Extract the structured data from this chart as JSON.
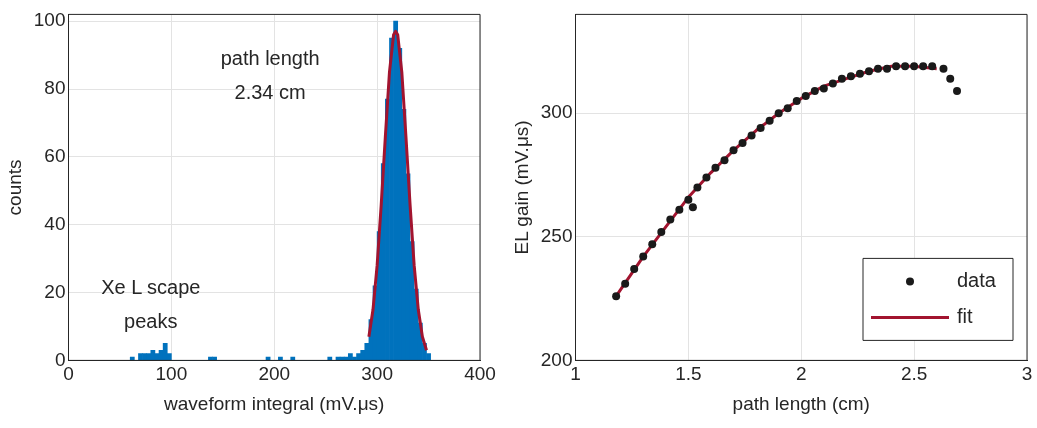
{
  "chart_data": [
    {
      "type": "histogram",
      "xlabel": "waveform integral (mV.μs)",
      "ylabel": "counts",
      "annotations": [
        "path length\n2.34 cm",
        "Xe L scape\npeaks"
      ],
      "bins": [
        60,
        64,
        68,
        72,
        76,
        80,
        84,
        88,
        92,
        96,
        100,
        104,
        108,
        112,
        116,
        120,
        124,
        128,
        132,
        136,
        140,
        144,
        148,
        152,
        156,
        160,
        164,
        168,
        172,
        176,
        180,
        184,
        188,
        192,
        196,
        200,
        204,
        208,
        212,
        216,
        220,
        224,
        228,
        232,
        236,
        240,
        244,
        248,
        252,
        256,
        260,
        264,
        268,
        272,
        276,
        280,
        284,
        288,
        292,
        296,
        300,
        304,
        308,
        312,
        316,
        320,
        324,
        328,
        332,
        336,
        340,
        344,
        348,
        352
      ],
      "values": [
        1,
        0,
        2,
        2,
        2,
        3,
        2,
        3,
        5,
        2,
        0,
        0,
        0,
        0,
        0,
        0,
        0,
        0,
        0,
        1,
        1,
        0,
        0,
        0,
        0,
        0,
        0,
        0,
        0,
        0,
        0,
        0,
        0,
        1,
        0,
        0,
        1,
        0,
        0,
        1,
        0,
        0,
        0,
        0,
        0,
        0,
        0,
        0,
        1,
        0,
        1,
        1,
        1,
        2,
        1,
        2,
        3,
        5,
        12,
        22,
        38,
        58,
        77,
        95,
        100,
        92,
        74,
        55,
        35,
        21,
        11,
        5,
        2
      ],
      "color": "#0072bd",
      "series": [
        {
          "type": "line",
          "color": "#a2142f",
          "x": [
            292,
            296,
            300,
            304,
            308,
            312,
            316,
            318,
            320,
            324,
            328,
            332,
            336,
            340,
            344,
            348
          ],
          "values": [
            7,
            15,
            28,
            46,
            66,
            85,
            96,
            97,
            96,
            85,
            66,
            46,
            28,
            15,
            7,
            3
          ]
        }
      ],
      "xlim": [
        0,
        400
      ],
      "xticks": [
        0,
        100,
        200,
        300,
        400
      ],
      "ylim": [
        0,
        102
      ],
      "yticks": [
        0,
        20,
        40,
        60,
        80,
        100
      ],
      "grid": true
    },
    {
      "type": "scatter",
      "xlabel": "path length (cm)",
      "ylabel": "EL gain (mV.μs)",
      "legend": "bottom right",
      "series": [
        {
          "name": "data",
          "type": "scatter",
          "color": "#1a1a1a",
          "marker": "circle",
          "x": [
            1.18,
            1.22,
            1.26,
            1.3,
            1.34,
            1.38,
            1.42,
            1.46,
            1.5,
            1.52,
            1.54,
            1.58,
            1.62,
            1.66,
            1.7,
            1.74,
            1.78,
            1.82,
            1.86,
            1.9,
            1.94,
            1.98,
            2.02,
            2.06,
            2.1,
            2.14,
            2.18,
            2.22,
            2.26,
            2.3,
            2.34,
            2.38,
            2.42,
            2.46,
            2.5,
            2.54,
            2.58,
            2.63,
            2.66,
            2.69
          ],
          "values": [
            226,
            231,
            237,
            242,
            247,
            252,
            257,
            261,
            265,
            262,
            270,
            274,
            278,
            281,
            285,
            288,
            291,
            294,
            297,
            300,
            302,
            305,
            307,
            309,
            310,
            312,
            314,
            315,
            316,
            317,
            318,
            318,
            319,
            319,
            319,
            319,
            319,
            318,
            314,
            309
          ]
        },
        {
          "name": "fit",
          "type": "line",
          "color": "#a2142f",
          "x": [
            1.18,
            1.3,
            1.4,
            1.5,
            1.6,
            1.7,
            1.8,
            1.9,
            2.0,
            2.1,
            2.2,
            2.3,
            2.4,
            2.5,
            2.6
          ],
          "values": [
            226,
            242,
            254,
            266,
            276,
            285,
            293,
            300,
            306,
            311,
            314,
            317,
            319,
            319,
            318
          ]
        }
      ],
      "xlim": [
        1,
        3
      ],
      "xticks": [
        1,
        1.5,
        2,
        2.5,
        3
      ],
      "ylim": [
        200,
        340
      ],
      "yticks": [
        200,
        250,
        300
      ],
      "grid": true
    }
  ]
}
